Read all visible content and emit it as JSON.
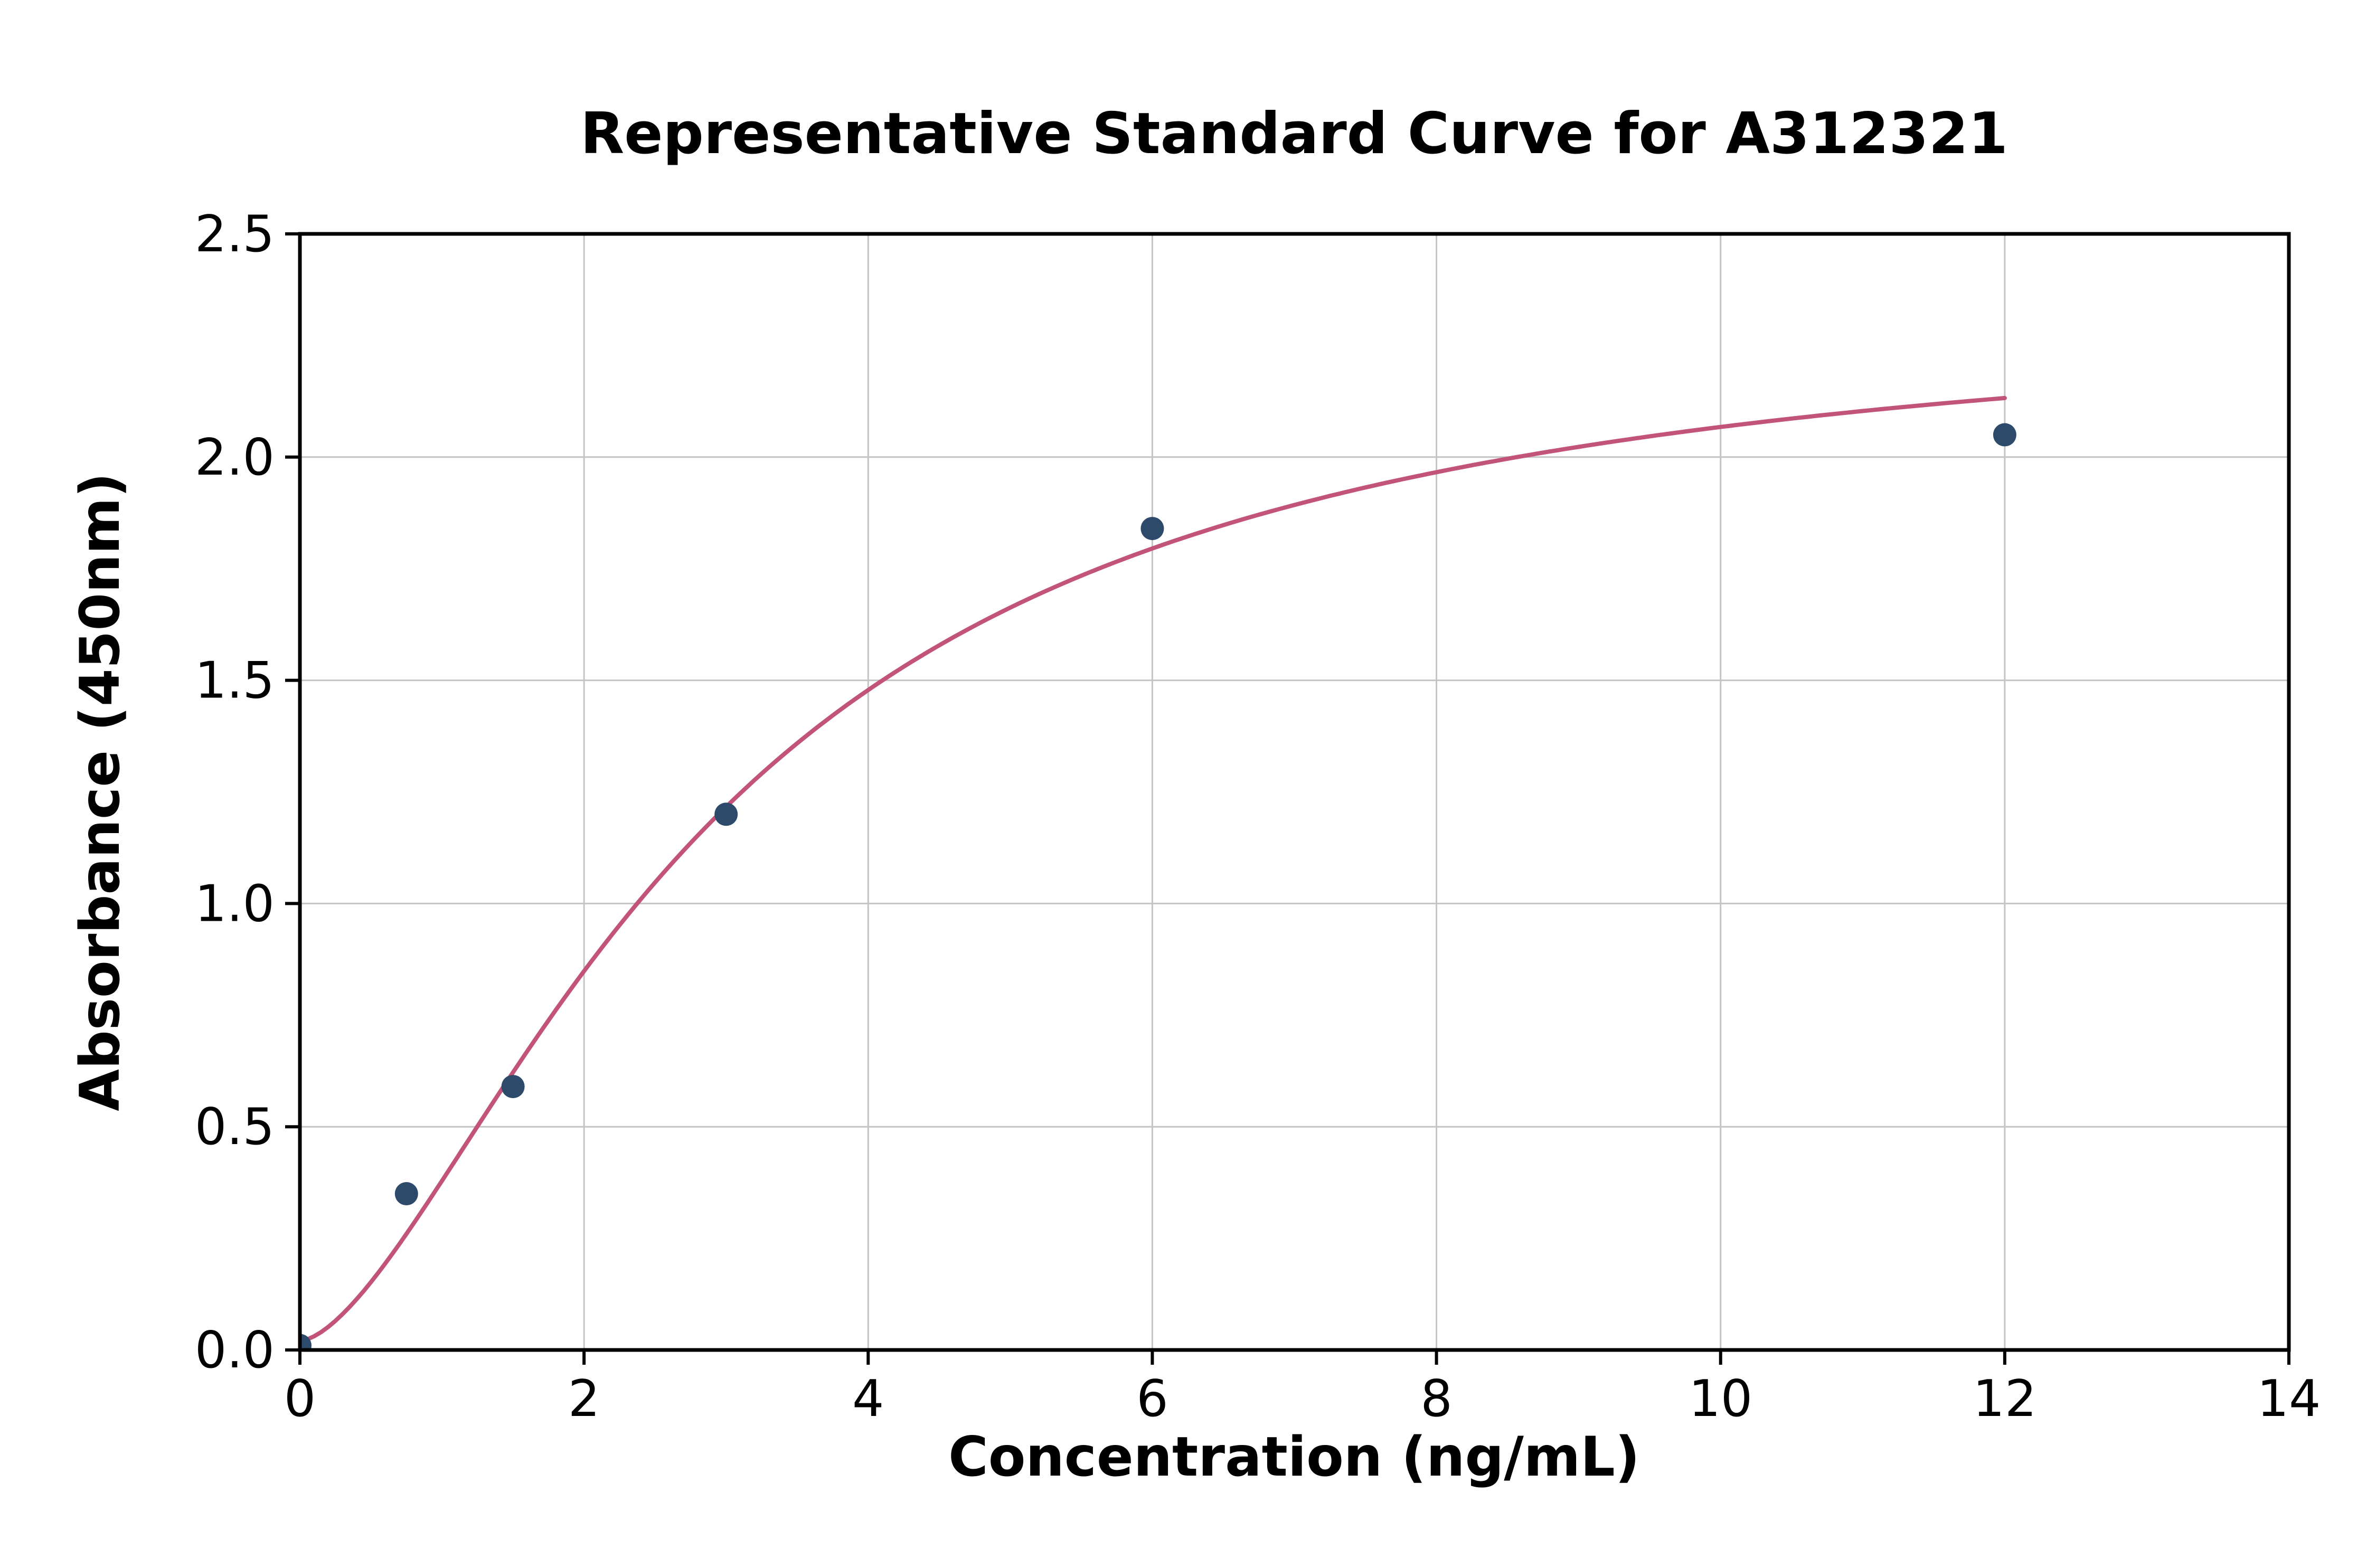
{
  "chart_data": {
    "type": "scatter",
    "title": "Representative Standard Curve for A312321",
    "xlabel": "Concentration (ng/mL)",
    "ylabel": "Absorbance (450nm)",
    "xlim": [
      0,
      14
    ],
    "ylim": [
      0,
      2.5
    ],
    "xticks": [
      0,
      2,
      4,
      6,
      8,
      10,
      12,
      14
    ],
    "xtick_labels": [
      "0",
      "2",
      "4",
      "6",
      "8",
      "10",
      "12",
      "14"
    ],
    "yticks": [
      0.0,
      0.5,
      1.0,
      1.5,
      2.0,
      2.5
    ],
    "ytick_labels": [
      "0.0",
      "0.5",
      "1.0",
      "1.5",
      "2.0",
      "2.5"
    ],
    "grid": true,
    "legend": "none",
    "points": [
      {
        "x": 0,
        "y": 0.01
      },
      {
        "x": 0.75,
        "y": 0.35
      },
      {
        "x": 1.5,
        "y": 0.59
      },
      {
        "x": 3,
        "y": 1.2
      },
      {
        "x": 6,
        "y": 1.84
      },
      {
        "x": 12,
        "y": 2.05
      }
    ],
    "fit_curve": {
      "model": "4PL",
      "a": 0.02,
      "b": 1.6,
      "c": 2.9,
      "d": 2.35,
      "x_start": 0,
      "x_end": 12
    },
    "colors": {
      "point": "#2e4a6b",
      "curve": "#c2547a",
      "grid": "#c4c4c4",
      "spine": "#000000",
      "background": "#ffffff",
      "text": "#000000"
    }
  }
}
